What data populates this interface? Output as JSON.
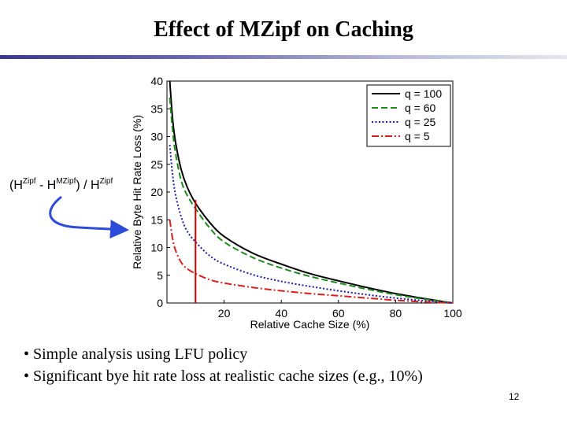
{
  "slide": {
    "title": "Effect of MZipf on Caching",
    "side_label": {
      "open": "(H",
      "sup1": "Zipf",
      "minus": " - H",
      "sup2": "MZipf",
      "mid": ") / H",
      "sup3": "Zipf"
    },
    "bullets": [
      "• Simple analysis using LFU policy",
      "• Significant bye hit rate loss at realistic cache sizes (e.g., 10%)"
    ],
    "slide_number": "12"
  },
  "colors": {
    "title_rule": "#4a4a9c",
    "arrow": "#2b4bd8",
    "marker": "#cc0000"
  },
  "chart_data": {
    "type": "line",
    "title": "",
    "xlabel": "Relative Cache Size (%)",
    "ylabel": "Relative Byte Hit Rate Loss (%)",
    "xlim": [
      0,
      100
    ],
    "ylim": [
      0,
      40
    ],
    "xticks": [
      20,
      40,
      60,
      80,
      100
    ],
    "yticks": [
      0,
      5,
      10,
      15,
      20,
      25,
      30,
      35,
      40
    ],
    "grid": false,
    "legend_position": "top-right",
    "marker_line": {
      "x": 10,
      "color": "#cc0000"
    },
    "series": [
      {
        "name": "q = 100",
        "color": "#000000",
        "style": "solid",
        "x": [
          1,
          2,
          3,
          5,
          7,
          10,
          15,
          20,
          30,
          40,
          50,
          60,
          70,
          80,
          90,
          100
        ],
        "y": [
          40,
          33,
          29,
          24,
          21,
          18,
          14.5,
          12,
          9,
          7,
          5.3,
          4,
          2.8,
          1.7,
          0.8,
          0
        ]
      },
      {
        "name": "q = 60",
        "color": "#1e8a1e",
        "style": "dashed",
        "x": [
          1,
          2,
          3,
          5,
          7,
          10,
          15,
          20,
          30,
          40,
          50,
          60,
          70,
          80,
          90,
          100
        ],
        "y": [
          37,
          31,
          27,
          22,
          19.5,
          17,
          13.5,
          11,
          8.2,
          6.3,
          4.8,
          3.6,
          2.5,
          1.5,
          0.7,
          0
        ]
      },
      {
        "name": "q = 25",
        "color": "#1c1ca8",
        "style": "dotted",
        "x": [
          1,
          2,
          3,
          5,
          7,
          10,
          15,
          20,
          30,
          40,
          50,
          60,
          70,
          80,
          90,
          100
        ],
        "y": [
          28.5,
          23,
          19.5,
          15.5,
          13,
          11,
          8.5,
          7,
          5.1,
          3.9,
          3,
          2.2,
          1.5,
          0.9,
          0.4,
          0
        ]
      },
      {
        "name": "q = 5",
        "color": "#d81e1e",
        "style": "dashdot",
        "x": [
          1,
          2,
          3,
          5,
          7,
          10,
          15,
          20,
          30,
          40,
          50,
          60,
          70,
          80,
          90,
          100
        ],
        "y": [
          15,
          11.5,
          9.5,
          7.3,
          6.2,
          5.3,
          4.2,
          3.6,
          2.8,
          2.2,
          1.7,
          1.3,
          0.9,
          0.5,
          0.2,
          0
        ]
      }
    ]
  }
}
